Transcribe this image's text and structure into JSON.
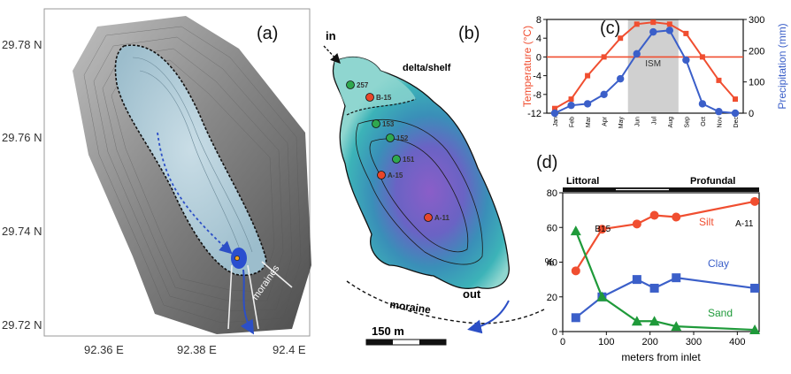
{
  "panel_a": {
    "label": "(a)",
    "lat_ticks": [
      "29.78 N",
      "29.76 N",
      "29.74 N",
      "29.72 N"
    ],
    "lon_ticks": [
      "92.36 E",
      "92.38 E",
      "92.4 E"
    ],
    "moraines_label": "moraines"
  },
  "panel_b": {
    "label": "(b)",
    "in_label": "in",
    "out_label": "out",
    "delta_label": "delta/shelf",
    "moraine_label": "moraine",
    "scale_label": "150 m",
    "sites": [
      {
        "name": "257",
        "color": "#2fa84f"
      },
      {
        "name": "B-15",
        "color": "#e8462a"
      },
      {
        "name": "153",
        "color": "#2fa84f"
      },
      {
        "name": "152",
        "color": "#2fa84f"
      },
      {
        "name": "151",
        "color": "#2fa84f"
      },
      {
        "name": "A-15",
        "color": "#e8462a"
      },
      {
        "name": "A-11",
        "color": "#e8462a"
      }
    ]
  },
  "chart_data": [
    {
      "type": "line",
      "panel": "(c)",
      "categories": [
        "Jan",
        "Feb",
        "Mar",
        "Apr",
        "May",
        "Jun",
        "Jul",
        "Aug",
        "Sep",
        "Oct",
        "Nov",
        "Dec"
      ],
      "series": [
        {
          "name": "Temperature (°C)",
          "axis": "left",
          "color": "#f04e30",
          "values": [
            -11,
            -9,
            -4,
            0,
            4,
            7,
            7.4,
            7,
            5,
            0,
            -5,
            -9
          ]
        },
        {
          "name": "Precipitation (mm)",
          "axis": "right",
          "color": "#3b5fc9",
          "values": [
            0,
            25,
            30,
            60,
            110,
            190,
            260,
            265,
            170,
            30,
            5,
            0
          ]
        }
      ],
      "ylabel_left": "Temperature (°C)",
      "ylabel_right": "Precipitation (mm)",
      "ylim_left": [
        -12,
        8
      ],
      "ylim_right": [
        0,
        300
      ],
      "yticks_left": [
        "-12",
        "-8",
        "-4",
        "0",
        "4",
        "8"
      ],
      "yticks_right": [
        "0",
        "100",
        "200",
        "300"
      ],
      "shaded_region": {
        "from": "Jun",
        "to": "Aug",
        "label": "ISM"
      }
    },
    {
      "type": "line",
      "panel": "(d)",
      "xlabel": "meters from inlet",
      "ylabel": "%",
      "xlim": [
        0,
        450
      ],
      "ylim": [
        0,
        80
      ],
      "xticks": [
        "0",
        "100",
        "200",
        "300",
        "400"
      ],
      "yticks": [
        "0",
        "20",
        "40",
        "60",
        "80"
      ],
      "zones": [
        "Littoral",
        "Profundal"
      ],
      "point_labels": [
        {
          "text": "B15",
          "x": 90
        },
        {
          "text": "A-11",
          "x": 440
        }
      ],
      "series": [
        {
          "name": "Silt",
          "color": "#f04e30",
          "marker": "circle",
          "x": [
            30,
            90,
            170,
            210,
            260,
            440
          ],
          "values": [
            35,
            59,
            62,
            67,
            66,
            75
          ]
        },
        {
          "name": "Clay",
          "color": "#3b5fc9",
          "marker": "square",
          "x": [
            30,
            90,
            170,
            210,
            260,
            440
          ],
          "values": [
            8,
            20,
            30,
            25,
            31,
            25
          ]
        },
        {
          "name": "Sand",
          "color": "#1f9a3a",
          "marker": "triangle",
          "x": [
            30,
            90,
            170,
            210,
            260,
            440
          ],
          "values": [
            58,
            20,
            6,
            6,
            3,
            1
          ]
        }
      ]
    }
  ]
}
